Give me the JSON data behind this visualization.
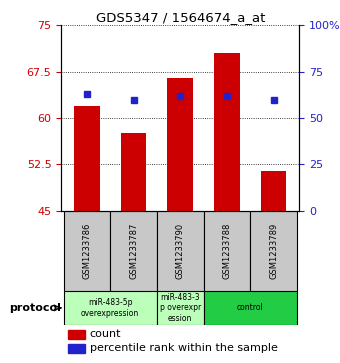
{
  "title": "GDS5347 / 1564674_a_at",
  "samples": [
    "GSM1233786",
    "GSM1233787",
    "GSM1233790",
    "GSM1233788",
    "GSM1233789"
  ],
  "count_values": [
    62.0,
    57.5,
    66.5,
    70.5,
    51.5
  ],
  "percentile_values": [
    63,
    60,
    62,
    62,
    60
  ],
  "ylim_left": [
    45,
    75
  ],
  "ylim_right": [
    0,
    100
  ],
  "yticks_left": [
    45,
    52.5,
    60,
    67.5,
    75
  ],
  "ytick_labels_left": [
    "45",
    "52.5",
    "60",
    "67.5",
    "75"
  ],
  "yticks_right": [
    0,
    25,
    50,
    75,
    100
  ],
  "ytick_labels_right": [
    "0",
    "25",
    "50",
    "75",
    "100%"
  ],
  "bar_color": "#cc0000",
  "dot_color": "#2222cc",
  "bar_width": 0.55,
  "group_defs": [
    {
      "start": 0,
      "end": 1,
      "label": "miR-483-5p\noverexpression",
      "color": "#bbffbb"
    },
    {
      "start": 2,
      "end": 2,
      "label": "miR-483-3\np overexpr\nession",
      "color": "#bbffbb"
    },
    {
      "start": 3,
      "end": 4,
      "label": "control",
      "color": "#22cc44"
    }
  ],
  "protocol_label": "protocol",
  "legend_count_label": "count",
  "legend_percentile_label": "percentile rank within the sample",
  "sample_bg_color": "#c8c8c8",
  "plot_bg": "white",
  "fig_bg": "white"
}
